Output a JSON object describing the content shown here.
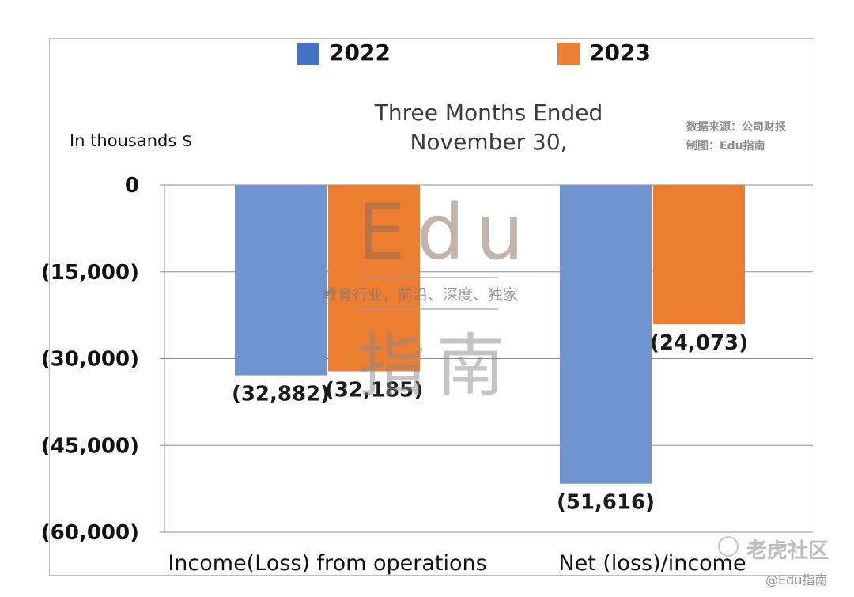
{
  "chart_data": {
    "type": "bar",
    "title": [
      "Three Months Ended",
      "November 30,"
    ],
    "ylabel": "In thousands $",
    "categories": [
      "Income(Loss) from operations",
      "Net (loss)/income"
    ],
    "series": [
      {
        "name": "2022",
        "color": "#7094d0",
        "values": [
          -32882,
          -51616
        ],
        "labels": [
          "(32,882)",
          "(51,616)"
        ]
      },
      {
        "name": "2023",
        "color": "#ed7d31",
        "values": [
          -32185,
          -24073
        ],
        "labels": [
          "(32,185)",
          "(24,073)"
        ]
      }
    ],
    "ylim": [
      -60000,
      0
    ],
    "yticks": [
      0,
      -15000,
      -30000,
      -45000,
      -60000
    ],
    "ytick_labels": [
      "0",
      "(15,000)",
      "(30,000)",
      "(45,000)",
      "(60,000)"
    ],
    "grid": true,
    "legend": "top"
  },
  "source": {
    "line1": "数据来源：公司财报",
    "line2": "制图：Edu指南"
  },
  "watermark": {
    "big_text": "Edu",
    "tagline": "教育行业，前沿、深度、独家",
    "cn_text": "指南"
  },
  "corner_watermark": {
    "brand": "老虎社区",
    "handle": "@Edu指南"
  }
}
